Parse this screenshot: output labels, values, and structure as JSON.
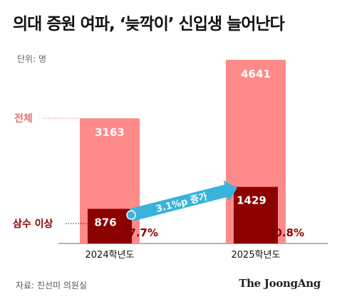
{
  "title": "의대 증원 여파, ‘늦깍이’ 신입생 늘어난다",
  "unit_label": "단위: 명",
  "source": "자료: 진선미 의원실",
  "publisher": "The JoongAng",
  "colors": {
    "total": "#ff8a8a",
    "repeat": "#8b0000",
    "arrow": "#38b4dc",
    "label_total": "#f06b6b",
    "label_repeat": "#8b0000"
  },
  "chart_data": {
    "type": "bar",
    "categories": [
      "2024학년도",
      "2025학년도"
    ],
    "series": [
      {
        "name": "전체",
        "values": [
          3163,
          4641
        ]
      },
      {
        "name": "삼수 이상",
        "values": [
          876,
          1429
        ]
      }
    ],
    "percent_labels": [
      "27.7%",
      "30.8%"
    ],
    "annotation": "3.1%p 증가",
    "ylim": [
      0,
      4641
    ]
  }
}
